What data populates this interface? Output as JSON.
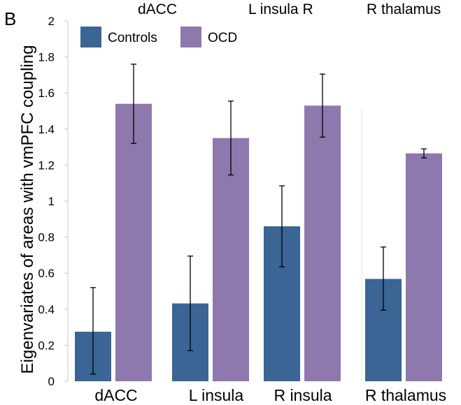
{
  "panel_label": "B",
  "top_labels": [
    "dACC",
    "L insula R",
    "R thalamus"
  ],
  "chart_data": {
    "type": "bar",
    "title": "",
    "xlabel": "",
    "ylabel": "Eigenvariates of areas with vmPFC coupling",
    "categories": [
      "dACC",
      "L insula",
      "R insula",
      "R thalamus"
    ],
    "ylim": [
      0,
      2
    ],
    "yticks": [
      0,
      0.2,
      0.4,
      0.6,
      0.8,
      1,
      1.2,
      1.4,
      1.6,
      1.8,
      2
    ],
    "ytick_labels": [
      "0",
      "0.2",
      "0.4",
      "0.6",
      "0.8",
      "1",
      "1.2",
      "1.4",
      "1.6",
      "1.8",
      "2"
    ],
    "grid": false,
    "legend_position": "top-left",
    "series": [
      {
        "name": "Controls",
        "color": "#3a6594",
        "values": [
          0.275,
          0.432,
          0.86,
          0.568
        ],
        "error_low": [
          0.04,
          0.17,
          0.635,
          0.395
        ],
        "error_high": [
          0.52,
          0.695,
          1.085,
          0.745
        ]
      },
      {
        "name": "OCD",
        "color": "#8e78ad",
        "values": [
          1.54,
          1.35,
          1.53,
          1.265
        ],
        "error_low": [
          1.32,
          1.145,
          1.355,
          1.24
        ],
        "error_high": [
          1.76,
          1.555,
          1.705,
          1.29
        ]
      }
    ]
  }
}
